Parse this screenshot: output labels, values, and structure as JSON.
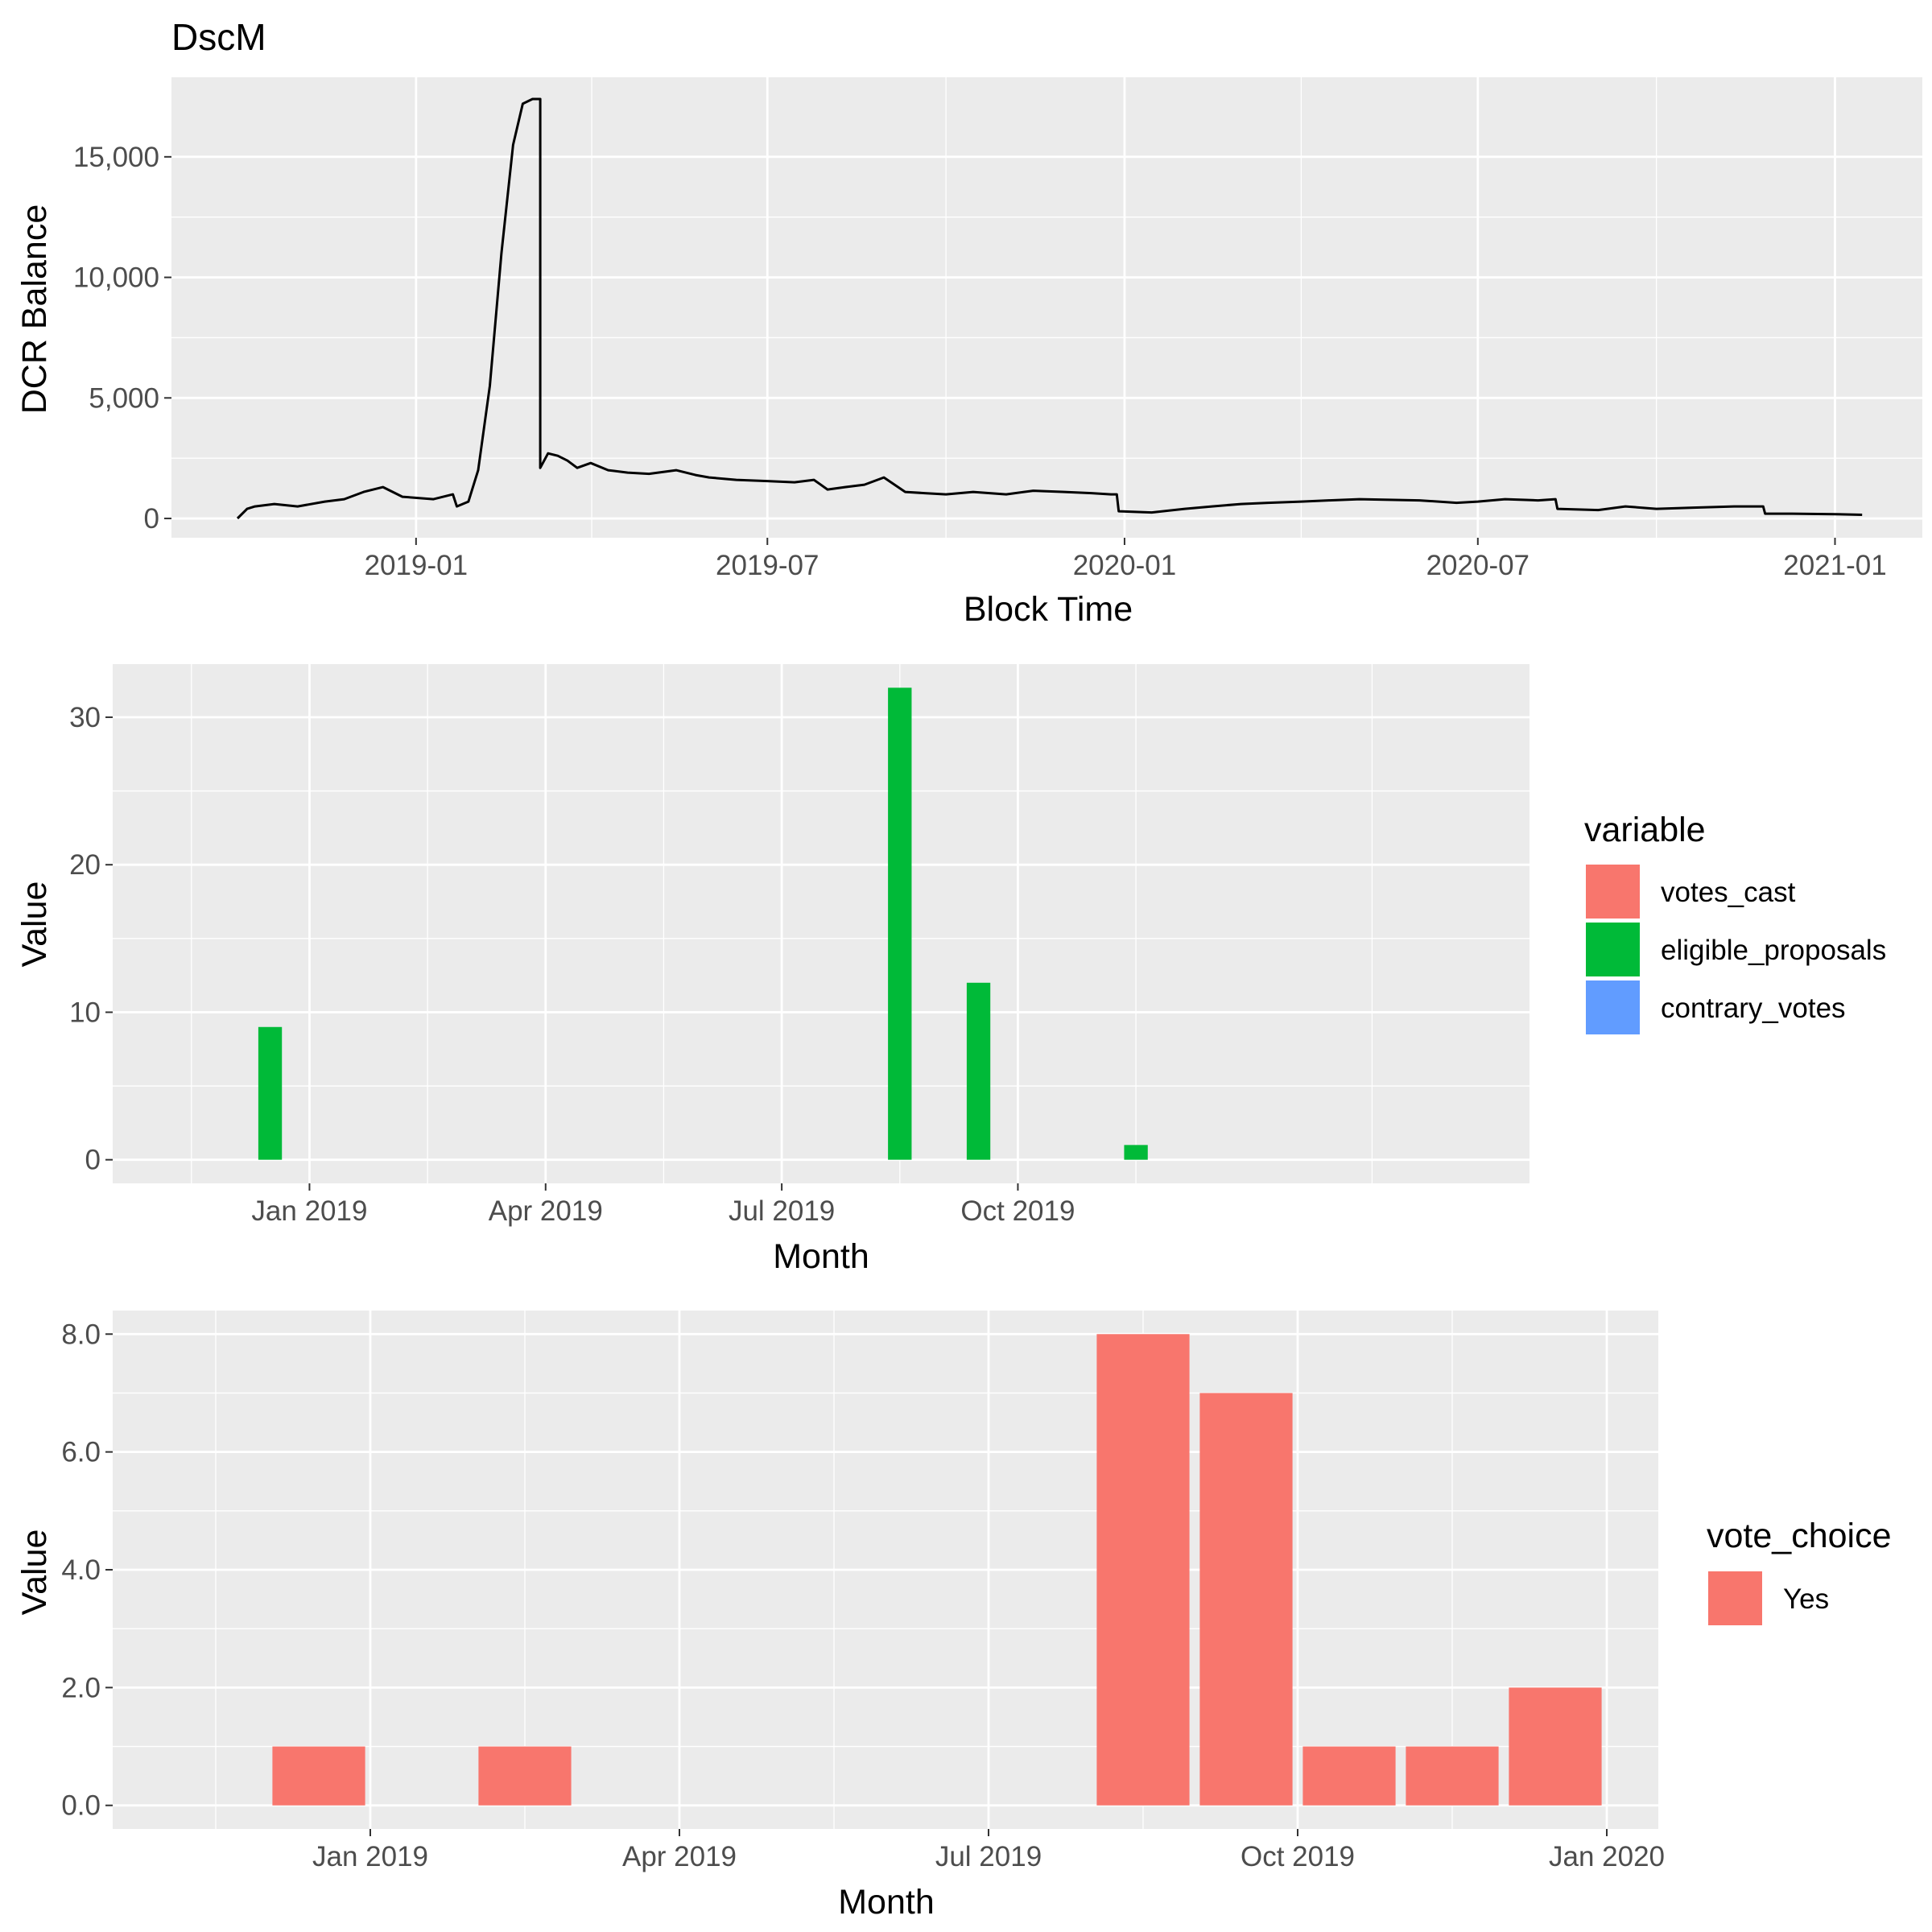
{
  "chart_data": [
    {
      "type": "line",
      "title": "DscM",
      "xlabel": "Block Time",
      "ylabel": "DCR Balance",
      "x_ticks": [
        "2019-01",
        "2019-07",
        "2020-01",
        "2020-07",
        "2021-01"
      ],
      "y_ticks": [
        "0",
        "5,000",
        "10,000",
        "15,000"
      ],
      "xlim": [
        "2018-08-28",
        "2021-02-15"
      ],
      "ylim": [
        -800,
        18300
      ],
      "grid": true,
      "series": [
        {
          "color": "#000000",
          "x": [
            "2018-10-01",
            "2018-10-06",
            "2018-10-10",
            "2018-10-20",
            "2018-11-01",
            "2018-11-15",
            "2018-11-25",
            "2018-12-05",
            "2018-12-15",
            "2018-12-25",
            "2019-01-10",
            "2019-01-20",
            "2019-01-22",
            "2019-01-28",
            "2019-02-02",
            "2019-02-08",
            "2019-02-14",
            "2019-02-20",
            "2019-02-25",
            "2019-03-02",
            "2019-03-04",
            "2019-03-06",
            "2019-03-06",
            "2019-03-10",
            "2019-03-15",
            "2019-03-20",
            "2019-03-25",
            "2019-04-01",
            "2019-04-10",
            "2019-04-20",
            "2019-05-01",
            "2019-05-15",
            "2019-05-25",
            "2019-06-01",
            "2019-06-15",
            "2019-07-01",
            "2019-07-15",
            "2019-07-25",
            "2019-08-01",
            "2019-08-10",
            "2019-08-20",
            "2019-08-30",
            "2019-09-10",
            "2019-09-20",
            "2019-10-01",
            "2019-10-15",
            "2019-11-01",
            "2019-11-15",
            "2019-12-01",
            "2019-12-15",
            "2019-12-25",
            "2019-12-28",
            "2019-12-29",
            "2020-01-15",
            "2020-02-01",
            "2020-02-15",
            "2020-03-01",
            "2020-03-15",
            "2020-04-01",
            "2020-04-15",
            "2020-05-01",
            "2020-06-01",
            "2020-06-20",
            "2020-07-01",
            "2020-07-15",
            "2020-08-01",
            "2020-08-10",
            "2020-08-11",
            "2020-09-01",
            "2020-09-15",
            "2020-10-01",
            "2020-10-20",
            "2020-11-10",
            "2020-11-25",
            "2020-11-26",
            "2020-12-10",
            "2021-01-01",
            "2021-01-15"
          ],
          "y": [
            0,
            400,
            500,
            600,
            500,
            700,
            800,
            1100,
            1300,
            900,
            800,
            1000,
            500,
            700,
            2000,
            5500,
            11000,
            15500,
            17200,
            17400,
            17400,
            17400,
            2100,
            2700,
            2600,
            2400,
            2100,
            2300,
            2000,
            1900,
            1850,
            2000,
            1800,
            1700,
            1600,
            1550,
            1500,
            1600,
            1200,
            1300,
            1400,
            1700,
            1100,
            1050,
            1000,
            1100,
            1000,
            1150,
            1100,
            1050,
            1000,
            1000,
            300,
            250,
            400,
            500,
            600,
            650,
            700,
            750,
            800,
            750,
            650,
            700,
            800,
            750,
            800,
            400,
            350,
            500,
            400,
            450,
            500,
            500,
            200,
            200,
            180,
            150
          ]
        }
      ]
    },
    {
      "type": "bar",
      "xlabel": "Month",
      "ylabel": "Value",
      "x_ticks": [
        "Jan 2019",
        "Apr 2019",
        "Jul 2019",
        "Oct 2019"
      ],
      "y_ticks": [
        "0",
        "10",
        "20",
        "30"
      ],
      "ylim": [
        -1.6,
        33.6
      ],
      "grid": true,
      "legend": {
        "title": "variable",
        "position": "right",
        "entries": [
          {
            "name": "votes_cast",
            "color": "#F8766D"
          },
          {
            "name": "eligible_proposals",
            "color": "#00BA38"
          },
          {
            "name": "contrary_votes",
            "color": "#619CFF"
          }
        ]
      },
      "categories": [
        "Dec 2018",
        "Aug 2019",
        "Sep 2019",
        "Nov 2019"
      ],
      "series": [
        {
          "name": "votes_cast",
          "values": [
            0,
            0,
            0,
            0
          ]
        },
        {
          "name": "eligible_proposals",
          "values": [
            9,
            32,
            12,
            1
          ]
        },
        {
          "name": "contrary_votes",
          "values": [
            0,
            0,
            0,
            0
          ]
        }
      ]
    },
    {
      "type": "bar",
      "xlabel": "Month",
      "ylabel": "Value",
      "x_ticks": [
        "Jan 2019",
        "Apr 2019",
        "Jul 2019",
        "Oct 2019",
        "Jan 2020"
      ],
      "y_ticks": [
        "0.0",
        "2.0",
        "4.0",
        "6.0",
        "8.0"
      ],
      "ylim": [
        -0.4,
        8.4
      ],
      "grid": true,
      "legend": {
        "title": "vote_choice",
        "position": "right",
        "entries": [
          {
            "name": "Yes",
            "color": "#F8766D"
          }
        ]
      },
      "categories": [
        "Dec 2018",
        "Feb 2019",
        "Aug 2019",
        "Sep 2019",
        "Oct 2019",
        "Nov 2019",
        "Dec 2019"
      ],
      "series": [
        {
          "name": "Yes",
          "values": [
            1,
            1,
            8,
            7,
            1,
            1,
            2
          ]
        }
      ]
    }
  ]
}
